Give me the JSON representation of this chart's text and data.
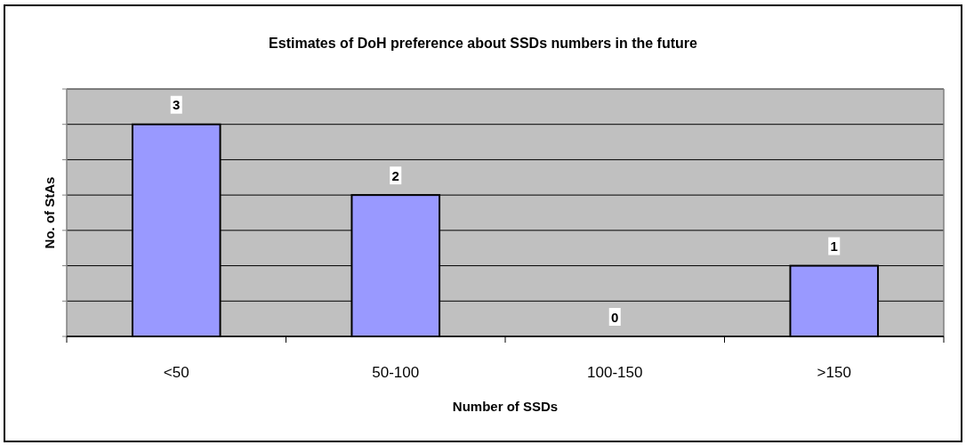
{
  "chart_data": {
    "type": "bar",
    "title": "Estimates of DoH preference about SSDs numbers in the future",
    "xlabel": "Number of SSDs",
    "ylabel": "No. of StAs",
    "categories": [
      "<50",
      "50-100",
      "100-150",
      ">150"
    ],
    "values": [
      3,
      2,
      0,
      1
    ],
    "color": "#9999ff",
    "ylim": [
      0,
      3.5
    ],
    "yticks": [
      {
        "value": 0,
        "label": null
      },
      {
        "value": 0.5,
        "label": null
      },
      {
        "value": 1,
        "label": null
      },
      {
        "value": 1.5,
        "label": null
      },
      {
        "value": 2,
        "label": null
      },
      {
        "value": 2.5,
        "label": null
      },
      {
        "value": 3,
        "label": null
      },
      {
        "value": 3.5,
        "label": null
      }
    ],
    "grid": "y",
    "data_labels": true,
    "tick_labels": "x"
  }
}
